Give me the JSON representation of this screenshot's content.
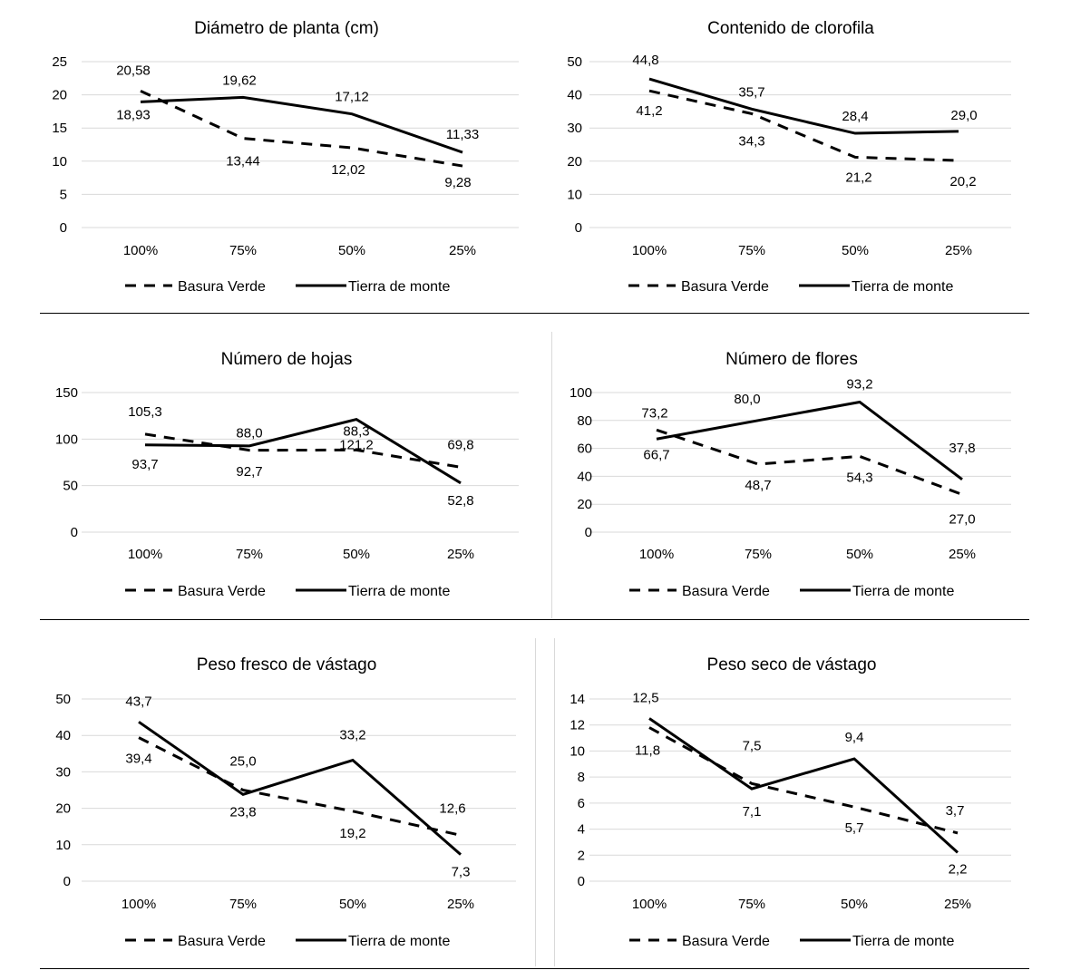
{
  "legend": {
    "series1": "Basura Verde",
    "series2": "Tierra de monte"
  },
  "chart_data": [
    {
      "type": "line",
      "title": "Diámetro de planta (cm)",
      "categories": [
        "100%",
        "75%",
        "50%",
        "25%"
      ],
      "ylim": [
        0,
        25
      ],
      "yticks": [
        "0",
        "5",
        "10",
        "15",
        "20",
        "25"
      ],
      "grid": true,
      "legend_position": "bottom",
      "series": [
        {
          "name": "Basura Verde",
          "style": "dashed",
          "values": [
            20.58,
            13.44,
            12.02,
            9.28
          ],
          "labels": [
            "20,58",
            "13,44",
            "12,02",
            "9,28"
          ]
        },
        {
          "name": "Tierra de monte",
          "style": "solid",
          "values": [
            18.93,
            19.62,
            17.12,
            11.33
          ],
          "labels": [
            "18,93",
            "19,62",
            "17,12",
            "11,33"
          ]
        }
      ]
    },
    {
      "type": "line",
      "title": "Contenido de clorofila",
      "categories": [
        "100%",
        "75%",
        "50%",
        "25%"
      ],
      "ylim": [
        0,
        50
      ],
      "yticks": [
        "0",
        "10",
        "20",
        "30",
        "40",
        "50"
      ],
      "grid": true,
      "legend_position": "bottom",
      "series": [
        {
          "name": "Basura Verde",
          "style": "dashed",
          "values": [
            41.2,
            34.3,
            21.2,
            20.2
          ],
          "labels": [
            "41,2",
            "34,3",
            "21,2",
            "20,2"
          ]
        },
        {
          "name": "Tierra de monte",
          "style": "solid",
          "values": [
            44.8,
            35.7,
            28.4,
            29.0
          ],
          "labels": [
            "44,8",
            "35,7",
            "28,4",
            "29,0"
          ]
        }
      ]
    },
    {
      "type": "line",
      "title": "Número de hojas",
      "categories": [
        "100%",
        "75%",
        "50%",
        "25%"
      ],
      "ylim": [
        0,
        150
      ],
      "yticks": [
        "0",
        "50",
        "100",
        "150"
      ],
      "grid": true,
      "legend_position": "bottom",
      "series": [
        {
          "name": "Basura Verde",
          "style": "dashed",
          "values": [
            105.3,
            88.0,
            88.3,
            69.8
          ],
          "labels": [
            "105,3",
            "88,0",
            "88,3",
            "69,8"
          ]
        },
        {
          "name": "Tierra de monte",
          "style": "solid",
          "values": [
            93.7,
            92.7,
            121.2,
            52.8
          ],
          "labels": [
            "93,7",
            "92,7",
            "121,2",
            "52,8"
          ]
        }
      ]
    },
    {
      "type": "line",
      "title": "Número de flores",
      "categories": [
        "100%",
        "75%",
        "50%",
        "25%"
      ],
      "ylim": [
        0,
        100
      ],
      "yticks": [
        "0",
        "20",
        "40",
        "60",
        "80",
        "100"
      ],
      "grid": true,
      "legend_position": "bottom",
      "series": [
        {
          "name": "Basura Verde",
          "style": "dashed",
          "values": [
            73.2,
            48.7,
            54.3,
            27.0
          ],
          "labels": [
            "73,2",
            "48,7",
            "54,3",
            "27,0"
          ]
        },
        {
          "name": "Tierra de monte",
          "style": "solid",
          "values": [
            66.7,
            80.0,
            93.2,
            37.8
          ],
          "labels": [
            "66,7",
            "80,0",
            "93,2",
            "37,8"
          ]
        }
      ]
    },
    {
      "type": "line",
      "title": "Peso fresco de vástago",
      "categories": [
        "100%",
        "75%",
        "50%",
        "25%"
      ],
      "ylim": [
        0,
        50
      ],
      "yticks": [
        "0",
        "10",
        "20",
        "30",
        "40",
        "50"
      ],
      "grid": true,
      "legend_position": "bottom",
      "series": [
        {
          "name": "Basura Verde",
          "style": "dashed",
          "values": [
            39.4,
            25.0,
            19.2,
            12.6
          ],
          "labels": [
            "39,4",
            "25,0",
            "19,2",
            "12,6"
          ]
        },
        {
          "name": "Tierra de monte",
          "style": "solid",
          "values": [
            43.7,
            23.8,
            33.2,
            7.3
          ],
          "labels": [
            "43,7",
            "23,8",
            "33,2",
            "7,3"
          ]
        }
      ]
    },
    {
      "type": "line",
      "title": "Peso seco de vástago",
      "categories": [
        "100%",
        "75%",
        "50%",
        "25%"
      ],
      "ylim": [
        0,
        14
      ],
      "yticks": [
        "0",
        "2",
        "4",
        "6",
        "8",
        "10",
        "12",
        "14"
      ],
      "grid": true,
      "legend_position": "bottom",
      "series": [
        {
          "name": "Basura Verde",
          "style": "dashed",
          "values": [
            11.8,
            7.5,
            5.7,
            3.7
          ],
          "labels": [
            "11,8",
            "7,5",
            "5,7",
            "3,7"
          ]
        },
        {
          "name": "Tierra de monte",
          "style": "solid",
          "values": [
            12.5,
            7.1,
            9.4,
            2.2
          ],
          "labels": [
            "12,5",
            "7,1",
            "9,4",
            "2,2"
          ]
        }
      ]
    }
  ]
}
